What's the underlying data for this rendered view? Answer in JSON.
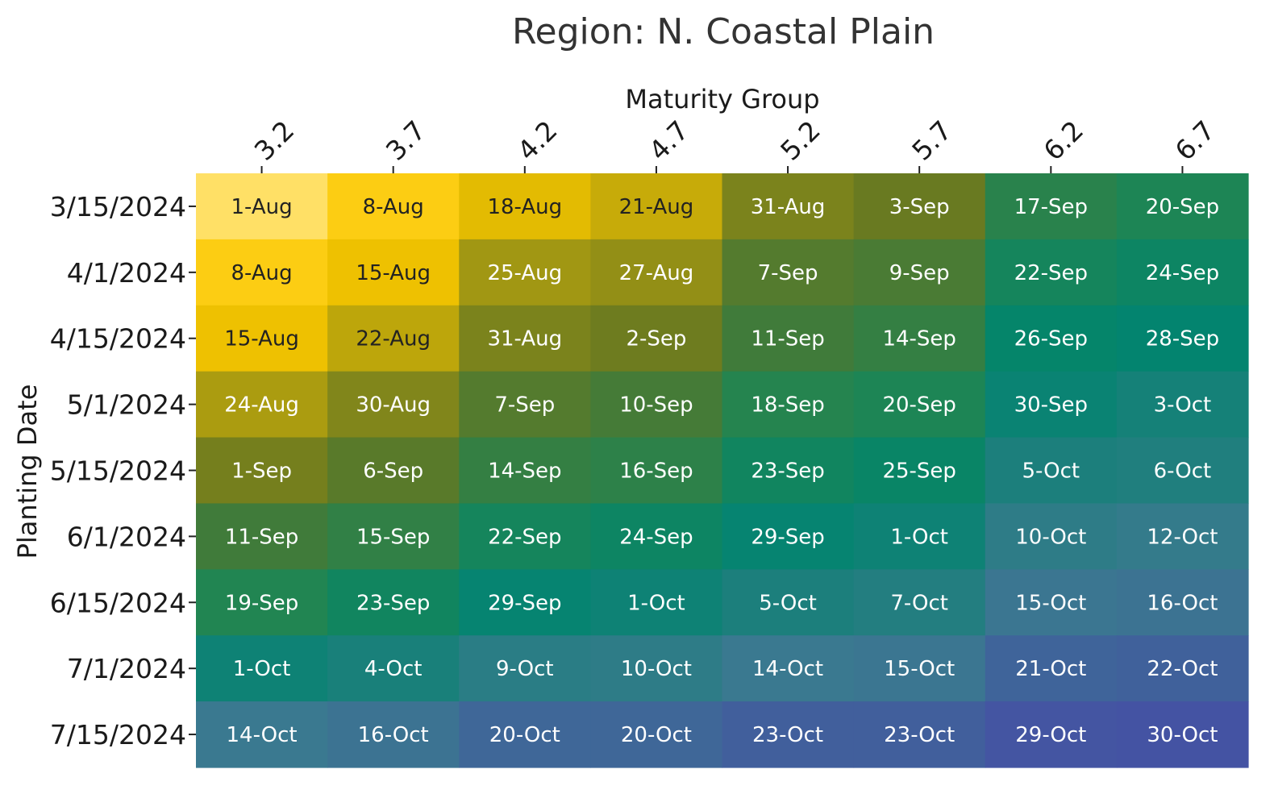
{
  "chart_data": {
    "type": "heatmap",
    "title": "Region: N. Coastal Plain",
    "xlabel": "Maturity Group",
    "ylabel": "Planting Date",
    "x_position": "top",
    "x": [
      "3.2",
      "3.7",
      "4.2",
      "4.7",
      "5.2",
      "5.7",
      "6.2",
      "6.7"
    ],
    "y": [
      "3/15/2024",
      "4/1/2024",
      "4/15/2024",
      "5/1/2024",
      "5/15/2024",
      "6/1/2024",
      "6/15/2024",
      "7/1/2024",
      "7/15/2024"
    ],
    "labels": [
      [
        "1-Aug",
        "8-Aug",
        "18-Aug",
        "21-Aug",
        "31-Aug",
        "3-Sep",
        "17-Sep",
        "20-Sep"
      ],
      [
        "8-Aug",
        "15-Aug",
        "25-Aug",
        "27-Aug",
        "7-Sep",
        "9-Sep",
        "22-Sep",
        "24-Sep"
      ],
      [
        "15-Aug",
        "22-Aug",
        "31-Aug",
        "2-Sep",
        "11-Sep",
        "14-Sep",
        "26-Sep",
        "28-Sep"
      ],
      [
        "24-Aug",
        "30-Aug",
        "7-Sep",
        "10-Sep",
        "18-Sep",
        "20-Sep",
        "30-Sep",
        "3-Oct"
      ],
      [
        "1-Sep",
        "6-Sep",
        "14-Sep",
        "16-Sep",
        "23-Sep",
        "25-Sep",
        "5-Oct",
        "6-Oct"
      ],
      [
        "11-Sep",
        "15-Sep",
        "22-Sep",
        "24-Sep",
        "29-Sep",
        "1-Oct",
        "10-Oct",
        "12-Oct"
      ],
      [
        "19-Sep",
        "23-Sep",
        "29-Sep",
        "1-Oct",
        "5-Oct",
        "7-Oct",
        "15-Oct",
        "16-Oct"
      ],
      [
        "1-Oct",
        "4-Oct",
        "9-Oct",
        "10-Oct",
        "14-Oct",
        "15-Oct",
        "21-Oct",
        "22-Oct"
      ],
      [
        "14-Oct",
        "16-Oct",
        "20-Oct",
        "20-Oct",
        "23-Oct",
        "23-Oct",
        "29-Oct",
        "30-Oct"
      ]
    ],
    "colormap": [
      "#FFE066",
      "#FCCA05",
      "#E9BE00",
      "#9C9414",
      "#6A7A20",
      "#407B3A",
      "#218552",
      "#00856E",
      "#1E7F7D",
      "#3A7A8F",
      "#40619B",
      "#4453A3"
    ],
    "text_color_dark": "#222222",
    "text_color_light": "#ffffff",
    "grid": false,
    "legend": "none"
  }
}
